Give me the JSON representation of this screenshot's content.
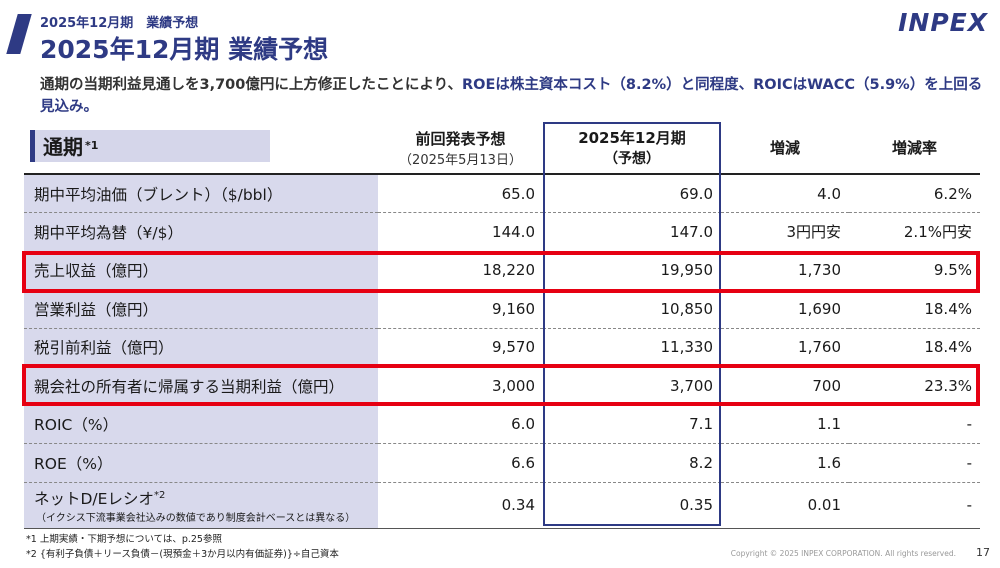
{
  "header": {
    "subtitle": "2025年12月期　業績予想",
    "title": "2025年12月期 業績予想",
    "logo": "INPEX"
  },
  "lead": {
    "part1": "通期の当期利益見通しを3,700億円に上方修正したことにより、",
    "part2": "ROEは株主資本コスト（8.2%）と同程度、ROICはWACC（5.9%）を上回る見込み。"
  },
  "table": {
    "label": "通期",
    "label_note": "*1",
    "columns": [
      {
        "title": "前回発表予想",
        "sub": "（2025年5月13日）"
      },
      {
        "title": "2025年12月期",
        "sub": "（予想）"
      },
      {
        "title": "増減",
        "sub": ""
      },
      {
        "title": "増減率",
        "sub": ""
      }
    ],
    "rows": [
      {
        "label": "期中平均油価（ブレント）（$/bbl）",
        "note": "",
        "sub": "",
        "prev": "65.0",
        "curr": "69.0",
        "diff": "4.0",
        "rate": "6.2%"
      },
      {
        "label": "期中平均為替（¥/$）",
        "note": "",
        "sub": "",
        "prev": "144.0",
        "curr": "147.0",
        "diff": "3円円安",
        "rate": "2.1%円安"
      },
      {
        "label": "売上収益（億円）",
        "note": "",
        "sub": "",
        "prev": "18,220",
        "curr": "19,950",
        "diff": "1,730",
        "rate": "9.5%"
      },
      {
        "label": "営業利益（億円）",
        "note": "",
        "sub": "",
        "prev": "9,160",
        "curr": "10,850",
        "diff": "1,690",
        "rate": "18.4%"
      },
      {
        "label": "税引前利益（億円）",
        "note": "",
        "sub": "",
        "prev": "9,570",
        "curr": "11,330",
        "diff": "1,760",
        "rate": "18.4%"
      },
      {
        "label": "親会社の所有者に帰属する当期利益（億円）",
        "note": "",
        "sub": "",
        "prev": "3,000",
        "curr": "3,700",
        "diff": "700",
        "rate": "23.3%"
      },
      {
        "label": "ROIC（%）",
        "note": "",
        "sub": "",
        "prev": "6.0",
        "curr": "7.1",
        "diff": "1.1",
        "rate": "-"
      },
      {
        "label": "ROE（%）",
        "note": "",
        "sub": "",
        "prev": "6.6",
        "curr": "8.2",
        "diff": "1.6",
        "rate": "-"
      },
      {
        "label": "ネットD/Eレシオ",
        "note": "*2",
        "sub": "（イクシス下流事業会社込みの数値であり制度会計ベースとは異なる）",
        "prev": "0.34",
        "curr": "0.35",
        "diff": "0.01",
        "rate": "-"
      }
    ]
  },
  "footnotes": [
    "*1 上期実績・下期予想については、p.25参照",
    "*2 {有利子負債＋リース負債－(現預金＋3か月以内有価証券)}÷自己資本"
  ],
  "copyright": "Copyright © 2025 INPEX CORPORATION. All rights reserved.",
  "page_number": "17",
  "colors": {
    "brand": "#2e3a84",
    "highlight": "#e60012",
    "label_bg": "#d8d9ec"
  }
}
